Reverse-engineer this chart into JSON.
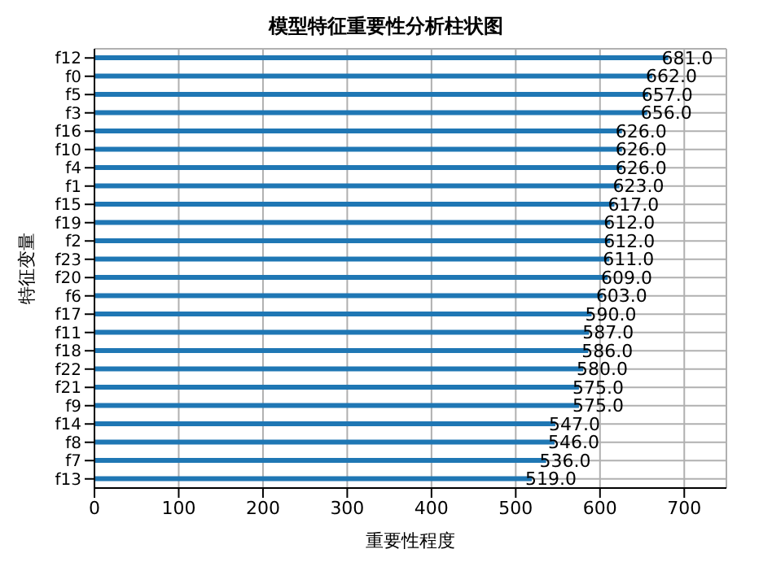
{
  "chart_data": {
    "type": "bar",
    "orientation": "horizontal",
    "title": "模型特征重要性分析柱状图",
    "xlabel": "重要性程度",
    "ylabel": "特征变量",
    "categories": [
      "f12",
      "f0",
      "f5",
      "f3",
      "f16",
      "f10",
      "f4",
      "f1",
      "f15",
      "f19",
      "f2",
      "f23",
      "f20",
      "f6",
      "f17",
      "f11",
      "f18",
      "f22",
      "f21",
      "f9",
      "f14",
      "f8",
      "f7",
      "f13"
    ],
    "values": [
      681,
      662,
      657,
      656,
      626,
      626,
      626,
      623,
      617,
      612,
      612,
      611,
      609,
      603,
      590,
      587,
      586,
      580,
      575,
      575,
      547,
      546,
      536,
      519
    ],
    "value_labels": [
      "681.0",
      "662.0",
      "657.0",
      "656.0",
      "626.0",
      "626.0",
      "626.0",
      "623.0",
      "617.0",
      "612.0",
      "612.0",
      "611.0",
      "609.0",
      "603.0",
      "590.0",
      "587.0",
      "586.0",
      "580.0",
      "575.0",
      "575.0",
      "547.0",
      "546.0",
      "536.0",
      "519.0"
    ],
    "color": "#1f77b4",
    "xlim": [
      0,
      750
    ],
    "xticks": [
      0,
      100,
      200,
      300,
      400,
      500,
      600,
      700
    ],
    "grid": true
  }
}
